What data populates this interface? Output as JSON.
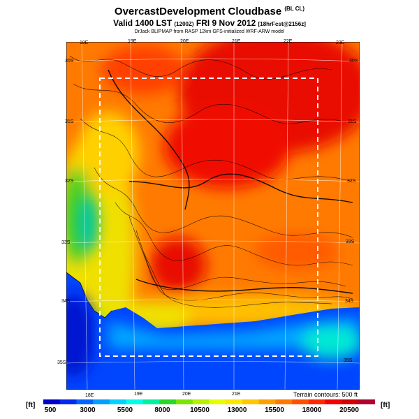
{
  "title": {
    "main": "OvercastDevelopment Cloudbase",
    "suffix": "(BL CL)",
    "valid": "Valid 1400 LST",
    "valid_time_small": "(1200Z)",
    "date": "FRI 9 Nov 2012",
    "forecast": "[18hrFcst@2156z]",
    "source": "DrJack BLIPMAP from RASP 12km GFS-initialized WRF-ARW model"
  },
  "map": {
    "lon_labels_top": [
      "18E",
      "19E",
      "20E",
      "21E",
      "22E",
      "23E"
    ],
    "lon_labels_bottom": [
      "18E",
      "19E",
      "20E",
      "21E"
    ],
    "lat_labels_left": [
      "30S",
      "31S",
      "32S",
      "33S",
      "34S",
      "35S"
    ],
    "lat_labels_right": [
      "30S",
      "31S",
      "32S",
      "33S",
      "34S",
      "35S"
    ],
    "terrain_note": "Terrain contours: 500 ft"
  },
  "colorbar": {
    "unit_left": "[ft]",
    "unit_right": "[ft]",
    "labels": [
      "500",
      "3000",
      "5500",
      "8000",
      "10500",
      "13000",
      "15500",
      "18000",
      "20500"
    ],
    "colors": [
      "#0000c8",
      "#0028f0",
      "#0064ff",
      "#00a0ff",
      "#00d2ff",
      "#00ffe6",
      "#00f0a0",
      "#28d828",
      "#78e600",
      "#b4f000",
      "#e6ff00",
      "#ffe600",
      "#ffc800",
      "#ffa000",
      "#ff7800",
      "#ff5000",
      "#ff2800",
      "#f00000",
      "#d00000",
      "#b00030"
    ]
  }
}
